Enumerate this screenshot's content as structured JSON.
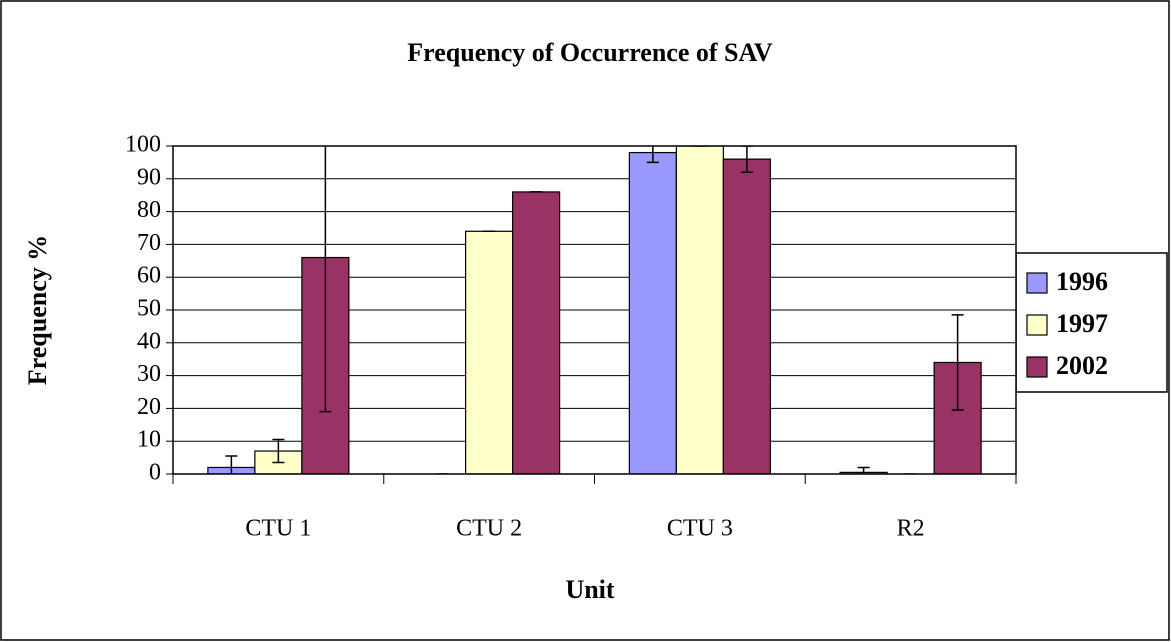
{
  "chart_data": {
    "type": "bar",
    "title": "Frequency of Occurrence of SAV",
    "x_label": "Unit",
    "y_label": "Frequency %",
    "categories": [
      "CTU 1",
      "CTU 2",
      "CTU 3",
      "R2"
    ],
    "series": [
      {
        "name": "1996",
        "color": "#9999ff",
        "values": [
          2,
          0,
          98,
          0.5
        ],
        "errors": [
          3.5,
          0,
          3,
          1.5
        ]
      },
      {
        "name": "1997",
        "color": "#ffffcc",
        "values": [
          7,
          74,
          100,
          0
        ],
        "errors": [
          3.5,
          0,
          0,
          0
        ]
      },
      {
        "name": "2002",
        "color": "#993366",
        "values": [
          66,
          86,
          96,
          34
        ],
        "errors": [
          47,
          0,
          4,
          14.5
        ]
      }
    ],
    "ylim": [
      0,
      100
    ],
    "yticks": [
      0,
      10,
      20,
      30,
      40,
      50,
      60,
      70,
      80,
      90,
      100
    ],
    "grid": true,
    "legend": "right"
  }
}
